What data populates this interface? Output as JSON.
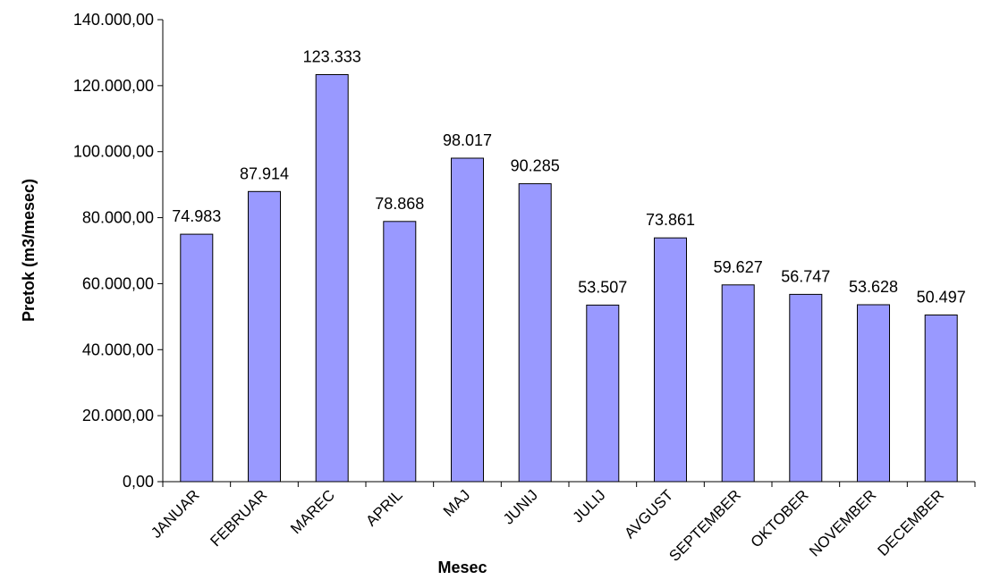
{
  "chart_data": {
    "type": "bar",
    "title": "",
    "xlabel": "Mesec",
    "ylabel": "Pretok (m3/mesec)",
    "ylim": [
      0,
      140000
    ],
    "y_ticks": [
      0,
      20000,
      40000,
      60000,
      80000,
      100000,
      120000,
      140000
    ],
    "y_tick_labels": [
      "0,00",
      "20.000,00",
      "40.000,00",
      "60.000,00",
      "80.000,00",
      "100.000,00",
      "120.000,00",
      "140.000,00"
    ],
    "categories": [
      "JANUAR",
      "FEBRUAR",
      "MAREC",
      "APRIL",
      "MAJ",
      "JUNIJ",
      "JULIJ",
      "AVGUST",
      "SEPTEMBER",
      "OKTOBER",
      "NOVEMBER",
      "DECEMBER"
    ],
    "values": [
      74983,
      87914,
      123333,
      78868,
      98017,
      90285,
      53507,
      73861,
      59627,
      56747,
      53628,
      50497
    ],
    "data_labels": [
      "74.983",
      "87.914",
      "123.333",
      "78.868",
      "98.017",
      "90.285",
      "53.507",
      "73.861",
      "59.627",
      "56.747",
      "53.628",
      "50.497"
    ],
    "grid": false,
    "legend": "none",
    "colors": {
      "bar_fill": "#9999ff",
      "bar_stroke": "#000000",
      "axis": "#000000",
      "background": "#ffffff"
    }
  }
}
